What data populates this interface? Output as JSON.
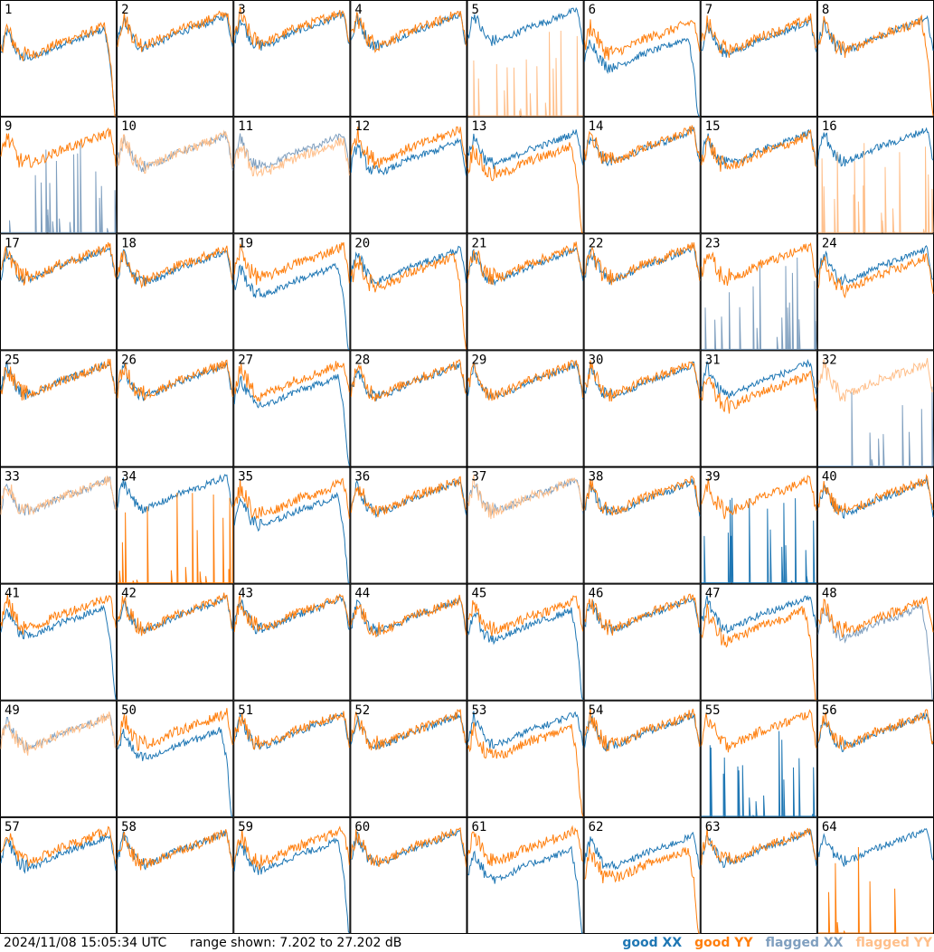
{
  "chart_data": {
    "type": "line",
    "title": "",
    "timestamp": "2024/11/08 15:05:34 UTC",
    "range_text": "range shown: 7.202 to 27.202 dB",
    "range_db": [
      7.202,
      27.202
    ],
    "grid": {
      "rows": 8,
      "cols": 8
    },
    "legend": [
      {
        "label": "good XX",
        "color": "#1f77b4"
      },
      {
        "label": "good YY",
        "color": "#ff7f0e"
      },
      {
        "label": "flagged XX",
        "color": "#7f9fbf"
      },
      {
        "label": "flagged YY",
        "color": "#ffbf8a"
      }
    ],
    "x_points": [
      0.0,
      0.05,
      0.1,
      0.15,
      0.2,
      0.25,
      0.3,
      0.35,
      0.4,
      0.45,
      0.5,
      0.55,
      0.6,
      0.65,
      0.7,
      0.75,
      0.8,
      0.85,
      0.9,
      0.95,
      1.0
    ],
    "baseline_profile_db": [
      20.5,
      24.5,
      22.5,
      20.5,
      19.8,
      19.8,
      20.0,
      20.4,
      20.9,
      21.4,
      21.9,
      22.3,
      22.6,
      22.9,
      23.2,
      23.6,
      24.0,
      24.4,
      24.8,
      25.2,
      19.5
    ],
    "panels": [
      {
        "id": "1",
        "xx": {
          "offset": -2.5,
          "flagged": false,
          "mode": "dropend"
        },
        "yy": {
          "offset": -2.0,
          "flagged": false,
          "mode": "dropend"
        }
      },
      {
        "id": "2",
        "xx": {
          "offset": -0.5,
          "flagged": false,
          "mode": "normal"
        },
        "yy": {
          "offset": 0.0,
          "flagged": false,
          "mode": "normal"
        }
      },
      {
        "id": "3",
        "xx": {
          "offset": -0.3,
          "flagged": false,
          "mode": "normal"
        },
        "yy": {
          "offset": 0.3,
          "flagged": false,
          "mode": "normal"
        }
      },
      {
        "id": "4",
        "xx": {
          "offset": -0.3,
          "flagged": false,
          "mode": "normal"
        },
        "yy": {
          "offset": 0.0,
          "flagged": false,
          "mode": "normal"
        }
      },
      {
        "id": "5",
        "xx": {
          "offset": 0.5,
          "flagged": false,
          "mode": "normal"
        },
        "yy": {
          "offset": 0.0,
          "flagged": true,
          "mode": "spikes"
        }
      },
      {
        "id": "6",
        "xx": {
          "offset": -4.0,
          "flagged": false,
          "mode": "dropend"
        },
        "yy": {
          "offset": -1.5,
          "flagged": false,
          "mode": "normal"
        }
      },
      {
        "id": "7",
        "xx": {
          "offset": -1.5,
          "flagged": false,
          "mode": "normal"
        },
        "yy": {
          "offset": -1.0,
          "flagged": false,
          "mode": "normal"
        }
      },
      {
        "id": "8",
        "xx": {
          "offset": -1.0,
          "flagged": false,
          "mode": "normal"
        },
        "yy": {
          "offset": -1.0,
          "flagged": false,
          "mode": "dropend"
        }
      },
      {
        "id": "9",
        "xx": {
          "offset": 0.0,
          "flagged": true,
          "mode": "spikes"
        },
        "yy": {
          "offset": -0.5,
          "flagged": false,
          "mode": "normal"
        }
      },
      {
        "id": "10",
        "xx": {
          "offset": -1.0,
          "flagged": true,
          "mode": "normal"
        },
        "yy": {
          "offset": -1.0,
          "flagged": true,
          "mode": "normal"
        }
      },
      {
        "id": "11",
        "xx": {
          "offset": -1.0,
          "flagged": true,
          "mode": "normal"
        },
        "yy": {
          "offset": -2.0,
          "flagged": true,
          "mode": "normal"
        }
      },
      {
        "id": "12",
        "xx": {
          "offset": -2.0,
          "flagged": false,
          "mode": "normal"
        },
        "yy": {
          "offset": 0.0,
          "flagged": false,
          "mode": "normal"
        }
      },
      {
        "id": "13",
        "xx": {
          "offset": -0.5,
          "flagged": false,
          "mode": "normal"
        },
        "yy": {
          "offset": -2.5,
          "flagged": false,
          "mode": "dropend"
        }
      },
      {
        "id": "14",
        "xx": {
          "offset": -0.2,
          "flagged": false,
          "mode": "normal"
        },
        "yy": {
          "offset": 0.0,
          "flagged": false,
          "mode": "normal"
        }
      },
      {
        "id": "15",
        "xx": {
          "offset": -0.5,
          "flagged": false,
          "mode": "normal"
        },
        "yy": {
          "offset": -1.0,
          "flagged": false,
          "mode": "normal"
        }
      },
      {
        "id": "16",
        "xx": {
          "offset": 0.0,
          "flagged": false,
          "mode": "normal"
        },
        "yy": {
          "offset": 0.0,
          "flagged": true,
          "mode": "spikes"
        }
      },
      {
        "id": "17",
        "xx": {
          "offset": -0.3,
          "flagged": false,
          "mode": "normal"
        },
        "yy": {
          "offset": 0.0,
          "flagged": false,
          "mode": "normal"
        }
      },
      {
        "id": "18",
        "xx": {
          "offset": -0.8,
          "flagged": false,
          "mode": "normal"
        },
        "yy": {
          "offset": -0.3,
          "flagged": false,
          "mode": "normal"
        }
      },
      {
        "id": "19",
        "xx": {
          "offset": -3.0,
          "flagged": false,
          "mode": "dropend"
        },
        "yy": {
          "offset": 0.0,
          "flagged": false,
          "mode": "normal"
        }
      },
      {
        "id": "20",
        "xx": {
          "offset": -0.5,
          "flagged": false,
          "mode": "normal"
        },
        "yy": {
          "offset": -1.5,
          "flagged": false,
          "mode": "dropend"
        }
      },
      {
        "id": "21",
        "xx": {
          "offset": -0.5,
          "flagged": false,
          "mode": "normal"
        },
        "yy": {
          "offset": 0.0,
          "flagged": false,
          "mode": "normal"
        }
      },
      {
        "id": "22",
        "xx": {
          "offset": -0.3,
          "flagged": false,
          "mode": "normal"
        },
        "yy": {
          "offset": 0.0,
          "flagged": false,
          "mode": "normal"
        }
      },
      {
        "id": "23",
        "xx": {
          "offset": 0.0,
          "flagged": true,
          "mode": "spikes"
        },
        "yy": {
          "offset": 0.0,
          "flagged": false,
          "mode": "normal"
        }
      },
      {
        "id": "24",
        "xx": {
          "offset": -0.5,
          "flagged": false,
          "mode": "normal"
        },
        "yy": {
          "offset": -2.0,
          "flagged": false,
          "mode": "normal"
        }
      },
      {
        "id": "25",
        "xx": {
          "offset": 0.0,
          "flagged": false,
          "mode": "normal"
        },
        "yy": {
          "offset": 0.0,
          "flagged": false,
          "mode": "normal"
        }
      },
      {
        "id": "26",
        "xx": {
          "offset": -0.3,
          "flagged": false,
          "mode": "normal"
        },
        "yy": {
          "offset": 0.0,
          "flagged": false,
          "mode": "normal"
        }
      },
      {
        "id": "27",
        "xx": {
          "offset": -2.0,
          "flagged": false,
          "mode": "dropend"
        },
        "yy": {
          "offset": 0.0,
          "flagged": false,
          "mode": "normal"
        }
      },
      {
        "id": "28",
        "xx": {
          "offset": -0.3,
          "flagged": false,
          "mode": "normal"
        },
        "yy": {
          "offset": 0.0,
          "flagged": false,
          "mode": "normal"
        }
      },
      {
        "id": "29",
        "xx": {
          "offset": -0.3,
          "flagged": false,
          "mode": "normal"
        },
        "yy": {
          "offset": 0.0,
          "flagged": false,
          "mode": "normal"
        }
      },
      {
        "id": "30",
        "xx": {
          "offset": -0.3,
          "flagged": false,
          "mode": "normal"
        },
        "yy": {
          "offset": 0.0,
          "flagged": false,
          "mode": "normal"
        }
      },
      {
        "id": "31",
        "xx": {
          "offset": 0.0,
          "flagged": false,
          "mode": "normal"
        },
        "yy": {
          "offset": -2.0,
          "flagged": false,
          "mode": "normal"
        }
      },
      {
        "id": "32",
        "xx": {
          "offset": 0.0,
          "flagged": true,
          "mode": "spikes"
        },
        "yy": {
          "offset": 0.0,
          "flagged": true,
          "mode": "normal"
        }
      },
      {
        "id": "33",
        "xx": {
          "offset": 0.0,
          "flagged": true,
          "mode": "normal"
        },
        "yy": {
          "offset": 0.0,
          "flagged": true,
          "mode": "normal"
        }
      },
      {
        "id": "34",
        "xx": {
          "offset": 0.5,
          "flagged": false,
          "mode": "normal"
        },
        "yy": {
          "offset": 0.0,
          "flagged": false,
          "mode": "spikes"
        }
      },
      {
        "id": "35",
        "xx": {
          "offset": -2.5,
          "flagged": false,
          "mode": "dropend"
        },
        "yy": {
          "offset": -0.5,
          "flagged": false,
          "mode": "normal"
        }
      },
      {
        "id": "36",
        "xx": {
          "offset": -0.3,
          "flagged": false,
          "mode": "normal"
        },
        "yy": {
          "offset": 0.0,
          "flagged": false,
          "mode": "normal"
        }
      },
      {
        "id": "37",
        "xx": {
          "offset": 0.0,
          "flagged": true,
          "mode": "normal"
        },
        "yy": {
          "offset": 0.0,
          "flagged": true,
          "mode": "normal"
        }
      },
      {
        "id": "38",
        "xx": {
          "offset": -0.3,
          "flagged": false,
          "mode": "normal"
        },
        "yy": {
          "offset": 0.0,
          "flagged": false,
          "mode": "normal"
        }
      },
      {
        "id": "39",
        "xx": {
          "offset": 0.0,
          "flagged": false,
          "mode": "spikes"
        },
        "yy": {
          "offset": 0.0,
          "flagged": false,
          "mode": "normal"
        }
      },
      {
        "id": "40",
        "xx": {
          "offset": -0.3,
          "flagged": false,
          "mode": "normal"
        },
        "yy": {
          "offset": 0.0,
          "flagged": false,
          "mode": "normal"
        }
      },
      {
        "id": "41",
        "xx": {
          "offset": -1.5,
          "flagged": false,
          "mode": "dropend"
        },
        "yy": {
          "offset": 0.0,
          "flagged": false,
          "mode": "normal"
        }
      },
      {
        "id": "42",
        "xx": {
          "offset": -0.3,
          "flagged": false,
          "mode": "normal"
        },
        "yy": {
          "offset": 0.0,
          "flagged": false,
          "mode": "normal"
        }
      },
      {
        "id": "43",
        "xx": {
          "offset": -0.3,
          "flagged": false,
          "mode": "normal"
        },
        "yy": {
          "offset": 0.0,
          "flagged": false,
          "mode": "normal"
        }
      },
      {
        "id": "44",
        "xx": {
          "offset": -0.5,
          "flagged": false,
          "mode": "normal"
        },
        "yy": {
          "offset": -0.5,
          "flagged": false,
          "mode": "normal"
        }
      },
      {
        "id": "45",
        "xx": {
          "offset": -2.0,
          "flagged": false,
          "mode": "dropend"
        },
        "yy": {
          "offset": -0.5,
          "flagged": false,
          "mode": "normal"
        }
      },
      {
        "id": "46",
        "xx": {
          "offset": -0.3,
          "flagged": false,
          "mode": "normal"
        },
        "yy": {
          "offset": 0.0,
          "flagged": false,
          "mode": "normal"
        }
      },
      {
        "id": "47",
        "xx": {
          "offset": 0.0,
          "flagged": false,
          "mode": "normal"
        },
        "yy": {
          "offset": -2.0,
          "flagged": false,
          "mode": "dropend"
        }
      },
      {
        "id": "48",
        "xx": {
          "offset": -1.5,
          "flagged": true,
          "mode": "dropend"
        },
        "yy": {
          "offset": -0.5,
          "flagged": false,
          "mode": "normal"
        }
      },
      {
        "id": "49",
        "xx": {
          "offset": -0.5,
          "flagged": true,
          "mode": "normal"
        },
        "yy": {
          "offset": -0.5,
          "flagged": true,
          "mode": "normal"
        }
      },
      {
        "id": "50",
        "xx": {
          "offset": -2.5,
          "flagged": false,
          "mode": "dropend"
        },
        "yy": {
          "offset": 0.0,
          "flagged": false,
          "mode": "normal"
        }
      },
      {
        "id": "51",
        "xx": {
          "offset": -0.3,
          "flagged": false,
          "mode": "normal"
        },
        "yy": {
          "offset": 0.0,
          "flagged": false,
          "mode": "normal"
        }
      },
      {
        "id": "52",
        "xx": {
          "offset": -0.3,
          "flagged": false,
          "mode": "normal"
        },
        "yy": {
          "offset": 0.0,
          "flagged": false,
          "mode": "normal"
        }
      },
      {
        "id": "53",
        "xx": {
          "offset": 0.0,
          "flagged": false,
          "mode": "normal"
        },
        "yy": {
          "offset": -2.0,
          "flagged": false,
          "mode": "dropend"
        }
      },
      {
        "id": "54",
        "xx": {
          "offset": -0.3,
          "flagged": false,
          "mode": "normal"
        },
        "yy": {
          "offset": 0.0,
          "flagged": false,
          "mode": "normal"
        }
      },
      {
        "id": "55",
        "xx": {
          "offset": 0.0,
          "flagged": false,
          "mode": "spikes"
        },
        "yy": {
          "offset": 0.0,
          "flagged": false,
          "mode": "normal"
        }
      },
      {
        "id": "56",
        "xx": {
          "offset": -0.3,
          "flagged": false,
          "mode": "normal"
        },
        "yy": {
          "offset": 0.0,
          "flagged": false,
          "mode": "normal"
        }
      },
      {
        "id": "57",
        "xx": {
          "offset": -1.0,
          "flagged": false,
          "mode": "normal"
        },
        "yy": {
          "offset": 0.0,
          "flagged": false,
          "mode": "normal"
        }
      },
      {
        "id": "58",
        "xx": {
          "offset": -0.5,
          "flagged": false,
          "mode": "normal"
        },
        "yy": {
          "offset": -0.5,
          "flagged": false,
          "mode": "normal"
        }
      },
      {
        "id": "59",
        "xx": {
          "offset": -1.5,
          "flagged": false,
          "mode": "dropend"
        },
        "yy": {
          "offset": 0.0,
          "flagged": false,
          "mode": "normal"
        }
      },
      {
        "id": "60",
        "xx": {
          "offset": -0.3,
          "flagged": false,
          "mode": "normal"
        },
        "yy": {
          "offset": 0.0,
          "flagged": false,
          "mode": "normal"
        }
      },
      {
        "id": "61",
        "xx": {
          "offset": -3.0,
          "flagged": false,
          "mode": "dropend"
        },
        "yy": {
          "offset": 0.0,
          "flagged": false,
          "mode": "normal"
        }
      },
      {
        "id": "62",
        "xx": {
          "offset": -1.0,
          "flagged": false,
          "mode": "normal"
        },
        "yy": {
          "offset": -3.0,
          "flagged": false,
          "mode": "dropend"
        }
      },
      {
        "id": "63",
        "xx": {
          "offset": -0.3,
          "flagged": false,
          "mode": "normal"
        },
        "yy": {
          "offset": 0.0,
          "flagged": false,
          "mode": "normal"
        }
      },
      {
        "id": "64",
        "xx": {
          "offset": 0.0,
          "flagged": false,
          "mode": "normal"
        },
        "yy": {
          "offset": 0.0,
          "flagged": false,
          "mode": "spikes"
        }
      }
    ]
  }
}
